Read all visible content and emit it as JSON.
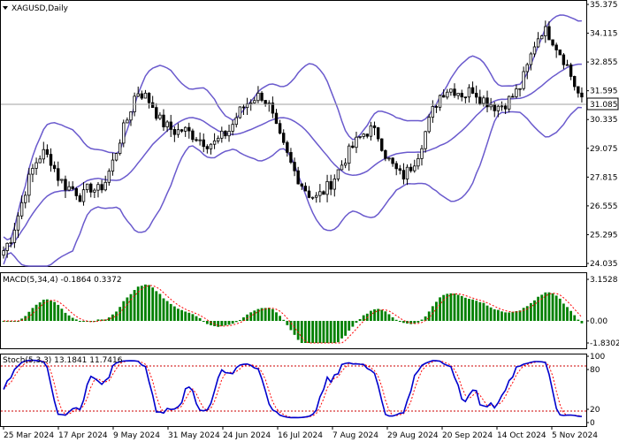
{
  "window": {
    "title": "XAGUSD,Daily",
    "menu_arrow_icon": "triangle-down-icon"
  },
  "colors": {
    "bull": "#000000",
    "bear": "#000000",
    "bollinger": "#6a5acd",
    "macd_hist": "#008000",
    "macd_signal": "#ff0000",
    "stoch_main": "#0000cd",
    "stoch_signal": "#ff0000",
    "level_lines": "#cc0000",
    "current_price_box": "#ffffff"
  },
  "price_panel": {
    "current_price": "31.085",
    "y_ticks": [
      "35.375",
      "34.115",
      "32.855",
      "31.595",
      "30.335",
      "29.075",
      "27.815",
      "26.555",
      "25.295",
      "24.035"
    ],
    "y_range": [
      24.035,
      35.375
    ]
  },
  "macd_panel": {
    "label": "MACD(5,34,4) -0.1864 0.3372",
    "y_ticks": [
      "3.1528",
      "0.00",
      "-1.8302"
    ],
    "y_range": [
      -1.8302,
      3.1528
    ]
  },
  "stoch_panel": {
    "label": "Stoch(5,3,3) 13.1841 11.7416",
    "y_ticks": [
      "100",
      "80",
      "20",
      "0"
    ],
    "levels": [
      80,
      20
    ]
  },
  "x_axis": {
    "labels": [
      "25 Mar 2024",
      "17 Apr 2024",
      "9 May 2024",
      "31 May 2024",
      "24 Jun 2024",
      "16 Jul 2024",
      "7 Aug 2024",
      "29 Aug 2024",
      "20 Sep 2024",
      "14 Oct 2024",
      "5 Nov 2024"
    ]
  },
  "chart_data": {
    "type": "candlestick",
    "symbol": "XAGUSD",
    "timeframe": "Daily",
    "close_anchors": [
      24.6,
      25.2,
      26.3,
      27.5,
      28.4,
      28.9,
      28.6,
      27.8,
      27.4,
      27.3,
      26.9,
      27.4,
      27.2,
      27.6,
      28.5,
      29.6,
      30.5,
      31.6,
      31.4,
      31.0,
      30.3,
      30.0,
      29.8,
      29.9,
      29.7,
      29.5,
      29.3,
      29.3,
      29.6,
      29.9,
      30.6,
      31.0,
      31.3,
      31.4,
      30.9,
      29.8,
      29.0,
      28.2,
      27.6,
      27.1,
      26.9,
      27.2,
      27.6,
      28.2,
      28.8,
      29.3,
      29.7,
      29.9,
      29.6,
      28.7,
      28.2,
      27.8,
      28.2,
      28.8,
      29.8,
      30.8,
      31.5,
      31.7,
      31.6,
      31.4,
      31.7,
      31.3,
      31.1,
      30.9,
      31.0,
      31.3,
      31.7,
      32.6,
      33.7,
      34.3,
      34.0,
      33.4,
      32.8,
      31.9,
      31.1
    ],
    "close_anchor_span": [
      "21 Mar 2024",
      "5 Nov 2024"
    ],
    "indicators": {
      "bollinger": true,
      "macd": {
        "params": [
          5,
          34,
          4
        ],
        "main": -0.1864,
        "signal": 0.3372
      },
      "stochastic": {
        "params": [
          5,
          3,
          3
        ],
        "main": 13.1841,
        "signal": 11.7416,
        "levels": [
          80,
          20
        ]
      }
    }
  }
}
